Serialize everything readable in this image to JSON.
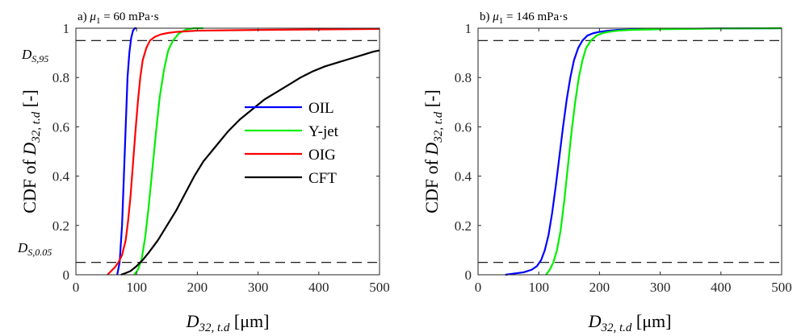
{
  "chart_data": [
    {
      "type": "line",
      "title_prefix": "a) ",
      "title_sym": "μ",
      "title_sub": "1",
      "title_suffix": " = 60 mPa·s",
      "xlabel": {
        "main": "D",
        "sub": "32, t.d",
        "unit": " [μm]"
      },
      "ylabel": {
        "prefix": "CDF of ",
        "main": "D",
        "sub": "32, t.d",
        "suffix": " [-]"
      },
      "xlim": [
        0,
        500
      ],
      "ylim": [
        0,
        1
      ],
      "xticks": [
        0,
        100,
        200,
        300,
        400,
        500
      ],
      "yticks": [
        0,
        0.2,
        0.4,
        0.6,
        0.8,
        1
      ],
      "ytick_labels": [
        "0",
        "0.2",
        "0.4",
        "0.6",
        "0.8",
        "1"
      ],
      "grid": false,
      "hlines": [
        0.05,
        0.95
      ],
      "annotations": [
        {
          "main": "D",
          "sub": "S,95"
        },
        {
          "main": "D",
          "sub": "S,0.05"
        }
      ],
      "legend": {
        "placement": "center-right",
        "entries": [
          "OIL",
          "Y-jet",
          "OIG",
          "CFT"
        ]
      },
      "series": [
        {
          "name": "OIL",
          "color": "#0000ff",
          "x": [
            68,
            72,
            76,
            79,
            82,
            85,
            88,
            91,
            94,
            97,
            100
          ],
          "y": [
            0,
            0.05,
            0.2,
            0.4,
            0.6,
            0.8,
            0.9,
            0.96,
            0.99,
            1,
            1
          ]
        },
        {
          "name": "Y-jet",
          "color": "#00ee00",
          "x": [
            96,
            102,
            108,
            114,
            120,
            126,
            132,
            138,
            145,
            152,
            160,
            170,
            182,
            195,
            205,
            210
          ],
          "y": [
            0,
            0.02,
            0.06,
            0.15,
            0.28,
            0.43,
            0.58,
            0.72,
            0.83,
            0.91,
            0.95,
            0.98,
            0.995,
            1,
            1,
            1
          ]
        },
        {
          "name": "OIG",
          "color": "#ff0000",
          "x": [
            52,
            58,
            64,
            70,
            76,
            82,
            86,
            90,
            94,
            98,
            102,
            106,
            110,
            116,
            122,
            130,
            140,
            150,
            165,
            200,
            300,
            500
          ],
          "y": [
            0,
            0.015,
            0.03,
            0.05,
            0.08,
            0.14,
            0.22,
            0.32,
            0.45,
            0.58,
            0.7,
            0.8,
            0.87,
            0.92,
            0.95,
            0.965,
            0.975,
            0.98,
            0.985,
            0.99,
            0.993,
            0.997
          ]
        },
        {
          "name": "CFT",
          "color": "#000000",
          "x": [
            74,
            80,
            90,
            100,
            110,
            120,
            135,
            150,
            165,
            180,
            195,
            210,
            230,
            250,
            270,
            290,
            310,
            330,
            350,
            370,
            390,
            410,
            430,
            450,
            470,
            490,
            500
          ],
          "y": [
            0,
            0.005,
            0.015,
            0.035,
            0.06,
            0.09,
            0.14,
            0.2,
            0.26,
            0.33,
            0.4,
            0.46,
            0.52,
            0.58,
            0.63,
            0.67,
            0.71,
            0.74,
            0.77,
            0.8,
            0.825,
            0.845,
            0.86,
            0.875,
            0.89,
            0.905,
            0.91
          ]
        }
      ]
    },
    {
      "type": "line",
      "title_prefix": "b) ",
      "title_sym": "μ",
      "title_sub": "1",
      "title_suffix": " = 146 mPa·s",
      "xlabel": {
        "main": "D",
        "sub": "32, t.d",
        "unit": " [μm]"
      },
      "ylabel": {
        "prefix": "CDF of ",
        "main": "D",
        "sub": "32, t.d",
        "suffix": " [-]"
      },
      "xlim": [
        0,
        500
      ],
      "ylim": [
        0,
        1
      ],
      "xticks": [
        0,
        100,
        200,
        300,
        400,
        500
      ],
      "yticks": [
        0,
        0.2,
        0.4,
        0.6,
        0.8,
        1
      ],
      "ytick_labels": [
        "0",
        "0.2",
        "0.4",
        "0.6",
        "0.8",
        "1"
      ],
      "grid": false,
      "hlines": [
        0.05,
        0.95
      ],
      "series": [
        {
          "name": "OIL",
          "color": "#0000ff",
          "x": [
            45,
            60,
            75,
            88,
            97,
            104,
            110,
            116,
            122,
            128,
            134,
            140,
            146,
            152,
            158,
            165,
            172,
            180,
            190,
            200,
            215,
            230,
            260,
            300,
            400,
            500
          ],
          "y": [
            0,
            0.005,
            0.01,
            0.02,
            0.035,
            0.06,
            0.1,
            0.16,
            0.25,
            0.36,
            0.48,
            0.6,
            0.71,
            0.8,
            0.87,
            0.92,
            0.95,
            0.97,
            0.98,
            0.985,
            0.99,
            0.993,
            0.995,
            0.997,
            0.999,
            1
          ]
        },
        {
          "name": "Y-jet",
          "color": "#00ee00",
          "x": [
            112,
            118,
            124,
            130,
            136,
            142,
            148,
            154,
            160,
            166,
            172,
            178,
            186,
            195,
            205,
            215,
            230,
            250,
            300,
            400,
            500
          ],
          "y": [
            0,
            0.02,
            0.05,
            0.1,
            0.18,
            0.3,
            0.44,
            0.58,
            0.7,
            0.8,
            0.87,
            0.92,
            0.95,
            0.97,
            0.98,
            0.985,
            0.99,
            0.993,
            0.996,
            0.999,
            1
          ]
        }
      ]
    }
  ]
}
